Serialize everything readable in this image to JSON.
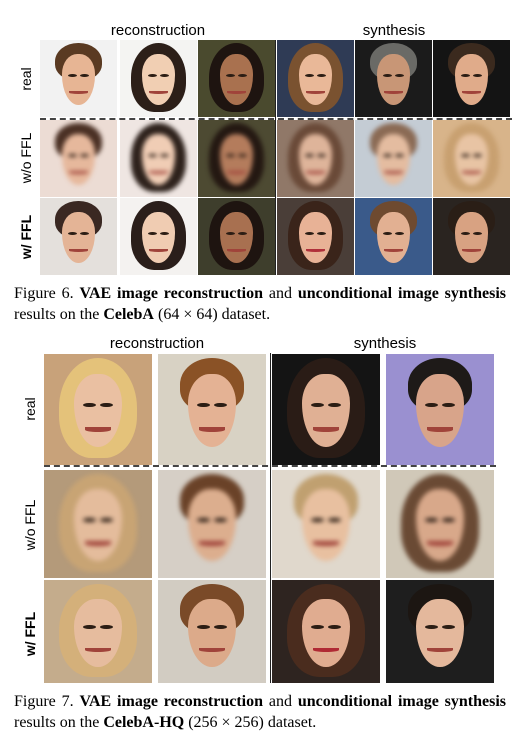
{
  "figure6": {
    "col_headers": {
      "reconstruction": "reconstruction",
      "synthesis": "synthesis"
    },
    "row_labels": [
      "real",
      "w/o FFL",
      "w/ FFL"
    ],
    "caption": {
      "prefix": "Figure 6.",
      "t1": "VAE image reconstruction",
      "t2": "and",
      "t3": "unconditional image synthesis",
      "t4": "results on the",
      "t5": "CelebA",
      "t6": "(64 × 64) dataset."
    }
  },
  "figure7": {
    "col_headers": {
      "reconstruction": "reconstruction",
      "synthesis": "synthesis"
    },
    "row_labels": [
      "real",
      "w/o FFL",
      "w/ FFL"
    ],
    "caption": {
      "prefix": "Figure 7.",
      "t1": "VAE image reconstruction",
      "t2": "and",
      "t3": "unconditional image synthesis",
      "t4": "results on the",
      "t5": "CelebA-HQ",
      "t6": "(256 × 256) dataset."
    }
  }
}
